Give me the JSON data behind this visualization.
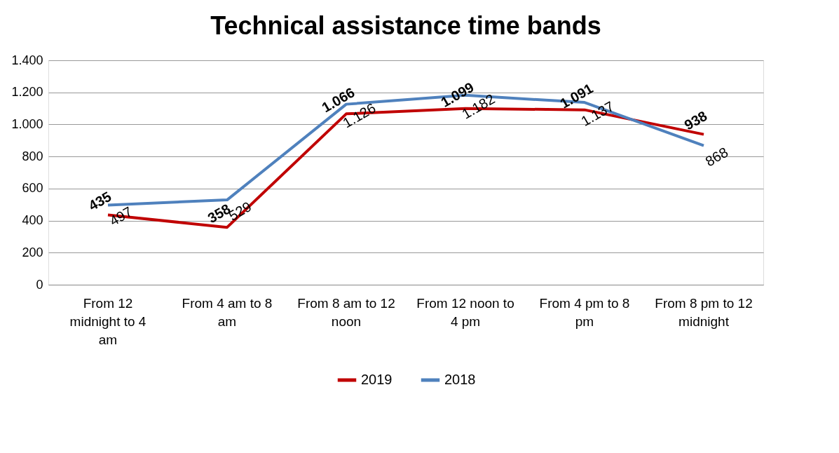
{
  "chart_data": {
    "type": "line",
    "title": "Technical assistance time bands",
    "categories": [
      "From 12 midnight to 4 am",
      "From 4 am to 8 am",
      "From 8 am to 12 noon",
      "From 12 noon to 4 pm",
      "From 4 pm to 8 pm",
      "From 8 pm to 12 midnight"
    ],
    "series": [
      {
        "name": "2019",
        "color": "#c00000",
        "values": [
          435,
          358,
          1066,
          1099,
          1091,
          938
        ],
        "value_labels": [
          "435",
          "358",
          "1.066",
          "1.099",
          "1.091",
          "938"
        ]
      },
      {
        "name": "2018",
        "color": "#4f81bd",
        "values": [
          497,
          529,
          1126,
          1182,
          1137,
          868
        ],
        "value_labels": [
          "497",
          "529",
          "1.126",
          "1.182",
          "1.137",
          "868"
        ]
      }
    ],
    "ylim": [
      0,
      1400
    ],
    "yticks": [
      0,
      200,
      400,
      600,
      800,
      {
        "value": 1000,
        "label": "1.000"
      },
      {
        "value": 1200,
        "label": "1.200"
      },
      {
        "value": 1400,
        "label": "1.400"
      }
    ],
    "grid": "y",
    "legend": "bottom",
    "marker": "none",
    "line_style": "solid"
  }
}
